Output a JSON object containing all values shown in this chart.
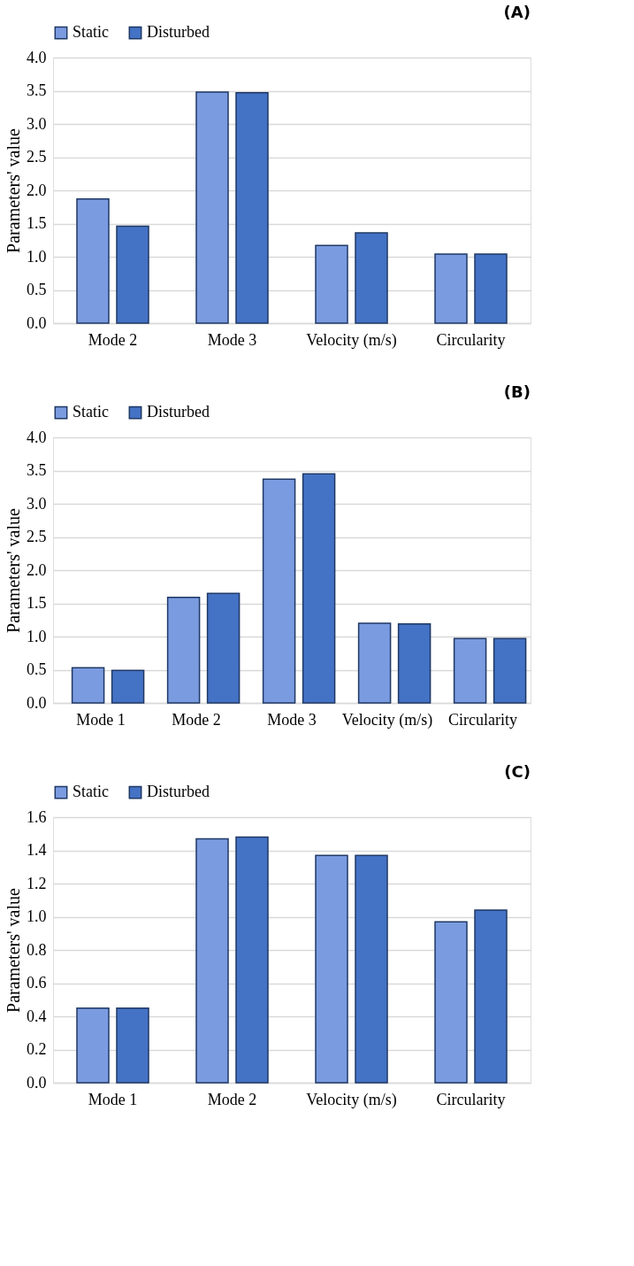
{
  "chart_data": [
    {
      "type": "bar",
      "title": "(A)",
      "ylabel": "Parameters' value",
      "categories": [
        "Mode 2",
        "Mode 3",
        "Velocity (m/s)",
        "Circularity"
      ],
      "series": [
        {
          "name": "Static",
          "color": "#7b9be0",
          "values": [
            1.87,
            3.48,
            1.17,
            1.04
          ]
        },
        {
          "name": "Disturbed",
          "color": "#4472c4",
          "values": [
            1.46,
            3.47,
            1.36,
            1.04
          ]
        }
      ],
      "ylim": [
        0,
        4.0
      ],
      "yticks": [
        {
          "value": 0,
          "label": "0.0"
        },
        {
          "value": 0.5,
          "label": "0.5"
        },
        {
          "value": 1,
          "label": "1.0"
        },
        {
          "value": 1.5,
          "label": "1.5"
        },
        {
          "value": 2,
          "label": "2.0"
        },
        {
          "value": 2.5,
          "label": "2.5"
        },
        {
          "value": 3,
          "label": "3.0"
        },
        {
          "value": 3.5,
          "label": "3.5"
        },
        {
          "value": 4,
          "label": "4.0"
        }
      ],
      "grid": "y",
      "legend": "top"
    },
    {
      "type": "bar",
      "title": "(B)",
      "ylabel": "Parameters' value",
      "categories": [
        "Mode 1",
        "Mode 2",
        "Mode 3",
        "Velocity (m/s)",
        "Circularity"
      ],
      "series": [
        {
          "name": "Static",
          "color": "#7b9be0",
          "values": [
            0.53,
            1.59,
            3.37,
            1.2,
            0.97
          ]
        },
        {
          "name": "Disturbed",
          "color": "#4472c4",
          "values": [
            0.49,
            1.65,
            3.45,
            1.19,
            0.97
          ]
        }
      ],
      "ylim": [
        0,
        4.0
      ],
      "yticks": [
        {
          "value": 0,
          "label": "0.0"
        },
        {
          "value": 0.5,
          "label": "0.5"
        },
        {
          "value": 1,
          "label": "1.0"
        },
        {
          "value": 1.5,
          "label": "1.5"
        },
        {
          "value": 2,
          "label": "2.0"
        },
        {
          "value": 2.5,
          "label": "2.5"
        },
        {
          "value": 3,
          "label": "3.0"
        },
        {
          "value": 3.5,
          "label": "3.5"
        },
        {
          "value": 4,
          "label": "4.0"
        }
      ],
      "grid": "y",
      "legend": "top"
    },
    {
      "type": "bar",
      "title": "(C)",
      "ylabel": "Parameters' value",
      "categories": [
        "Mode 1",
        "Mode 2",
        "Velocity (m/s)",
        "Circularity"
      ],
      "series": [
        {
          "name": "Static",
          "color": "#7b9be0",
          "values": [
            0.45,
            1.47,
            1.37,
            0.97
          ]
        },
        {
          "name": "Disturbed",
          "color": "#4472c4",
          "values": [
            0.45,
            1.48,
            1.37,
            1.04
          ]
        }
      ],
      "ylim": [
        0,
        1.6
      ],
      "yticks": [
        {
          "value": 0,
          "label": "0.0"
        },
        {
          "value": 0.2,
          "label": "0.2"
        },
        {
          "value": 0.4,
          "label": "0.4"
        },
        {
          "value": 0.6,
          "label": "0.6"
        },
        {
          "value": 0.8,
          "label": "0.8"
        },
        {
          "value": 1,
          "label": "1.0"
        },
        {
          "value": 1.2,
          "label": "1.2"
        },
        {
          "value": 1.4,
          "label": "1.4"
        },
        {
          "value": 1.6,
          "label": "1.6"
        }
      ],
      "grid": "y",
      "legend": "top"
    }
  ]
}
